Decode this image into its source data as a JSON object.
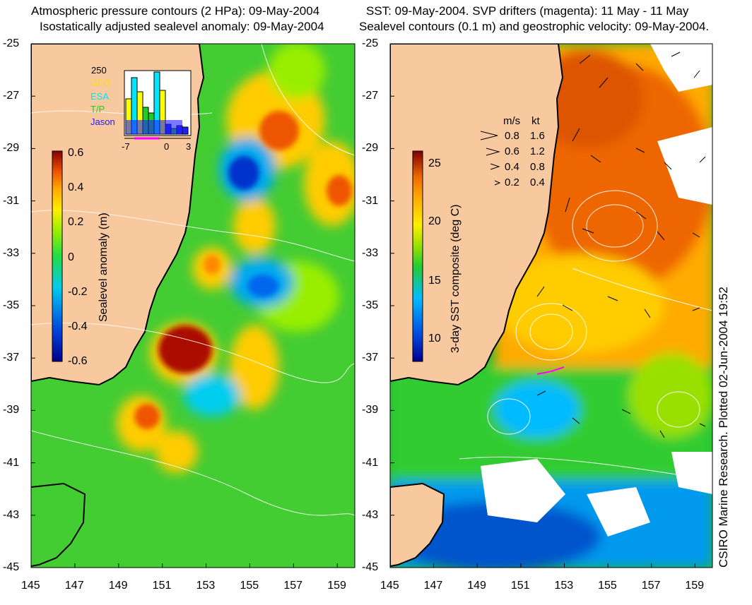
{
  "left_panel": {
    "title_line1": "Atmospheric pressure contours (2 HPa): 09-May-2004",
    "title_line2": "Isostatically adjusted sealevel anomaly: 09-May-2004",
    "colorbar_label": "Sealevel anomaly (m)",
    "colorbar_ticks": [
      "0.6",
      "0.4",
      "0.2",
      "0",
      "-0.2",
      "-0.4",
      "-0.6"
    ],
    "inset": {
      "ymax_label": "250",
      "legend": [
        {
          "name": "GFO",
          "color": "#ffff00"
        },
        {
          "name": "ESA",
          "color": "#00e5ff"
        },
        {
          "name": "T/P",
          "color": "#22cc22"
        },
        {
          "name": "Jason",
          "color": "#2020ff"
        }
      ],
      "x_ticks": [
        "-7",
        "0",
        "3"
      ]
    }
  },
  "right_panel": {
    "title_line1": "SST: 09-May-2004. SVP drifters (magenta): 11 May - 11 May",
    "title_line2": "Sealevel contours (0.1 m) and geostrophic velocity: 09-May-2004.",
    "colorbar_label": "3-day SST composite (deg C)",
    "colorbar_ticks": [
      "25",
      "20",
      "15",
      "10"
    ],
    "speed_legend": {
      "header_ms": "m/s",
      "header_kt": "kt",
      "rows": [
        {
          "ms": "0.8",
          "kt": "1.6"
        },
        {
          "ms": "0.6",
          "kt": "1.2"
        },
        {
          "ms": "0.4",
          "kt": "0.8"
        },
        {
          "ms": "0.2",
          "kt": "0.4"
        }
      ]
    },
    "credit": "CSIRO Marine Research. Plotted 02-Jun-2004 19:52"
  },
  "axes": {
    "y_ticks": [
      "-25",
      "-27",
      "-29",
      "-31",
      "-33",
      "-35",
      "-37",
      "-39",
      "-41",
      "-43",
      "-45"
    ],
    "x_ticks": [
      "145",
      "147",
      "149",
      "151",
      "153",
      "155",
      "157",
      "159"
    ]
  },
  "colors": {
    "land": "#f8c89e",
    "coast": "#000000",
    "sst_cmap": [
      "#00008b",
      "#0044dd",
      "#00bbff",
      "#22cc33",
      "#99e000",
      "#ffee00",
      "#ffaa00",
      "#ee6600",
      "#b02000",
      "#800000"
    ],
    "ssh_cmap": [
      "#00008b",
      "#0044dd",
      "#00ccee",
      "#22dd44",
      "#99ee00",
      "#ffee00",
      "#ffaa00",
      "#ee5500",
      "#aa1100",
      "#880000"
    ]
  }
}
